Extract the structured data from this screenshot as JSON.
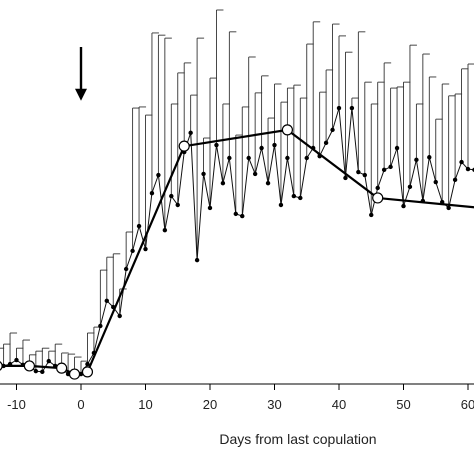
{
  "chart_data": {
    "type": "line",
    "xlabel": "Days from last copulation",
    "xlim": [
      -13,
      63
    ],
    "ylim": [
      0,
      100
    ],
    "x_ticks": [
      -10,
      0,
      10,
      20,
      30,
      40,
      50,
      60
    ],
    "x_tick_labels": [
      "-10",
      "0",
      "10",
      "20",
      "30",
      "40",
      "50",
      "60"
    ],
    "annotation": {
      "type": "arrow-down",
      "x": 0,
      "y_top": 90,
      "y_bottom": 76
    },
    "series": [
      {
        "style": "filled-dots-thin-line-with-error-bars",
        "x": [
          -13,
          -12,
          -11,
          -10,
          -9,
          -8,
          -7,
          -6,
          -5,
          -4,
          -3,
          -2,
          -1,
          0,
          1,
          2,
          3,
          4,
          5,
          6,
          7,
          8,
          9,
          10,
          11,
          12,
          13,
          14,
          15,
          16,
          17,
          18,
          19,
          20,
          21,
          22,
          23,
          24,
          25,
          26,
          27,
          28,
          29,
          30,
          31,
          32,
          33,
          34,
          35,
          36,
          37,
          38,
          39,
          40,
          41,
          42,
          43,
          44,
          45,
          46,
          47,
          48,
          49,
          50,
          51,
          52,
          53,
          54,
          55,
          56,
          57,
          58,
          59,
          60,
          61,
          62
        ],
        "y": [
          4.1,
          3.8,
          4.3,
          5.4,
          4.1,
          3.8,
          2.4,
          2.2,
          5.1,
          3.8,
          3.2,
          1.6,
          1.4,
          1.6,
          4.3,
          7.3,
          14.6,
          21.4,
          19.7,
          17.3,
          30.0,
          34.9,
          41.6,
          35.4,
          50.5,
          55.4,
          40.5,
          49.7,
          47.3,
          61.6,
          66.8,
          32.4,
          55.7,
          46.5,
          63.5,
          53.2,
          60.0,
          44.9,
          44.3,
          60.0,
          55.7,
          62.7,
          53.2,
          63.5,
          47.3,
          60.0,
          49.7,
          49.2,
          60.0,
          62.7,
          60.5,
          64.1,
          67.6,
          73.5,
          54.6,
          73.5,
          56.2,
          55.4,
          44.6,
          51.9,
          56.8,
          57.6,
          62.7,
          47.0,
          52.2,
          59.5,
          48.4,
          60.2,
          53.5,
          48.1,
          46.5,
          54.1,
          58.9,
          57.0,
          56.8,
          43.5
        ],
        "error_upper": [
          8.6,
          9.7,
          12.7,
          8.6,
          10.8,
          6.8,
          7.8,
          8.6,
          7.8,
          9.7,
          7.3,
          7.0,
          6.2,
          5.1,
          12.7,
          14.3,
          29.7,
          33.2,
          34.1,
          24.6,
          40.0,
          73.5,
          73.8,
          71.6,
          93.8,
          93.2,
          92.4,
          74.6,
          83.0,
          85.7,
          77.0,
          92.4,
          65.4,
          81.6,
          100.0,
          74.6,
          94.1,
          66.2,
          73.8,
          87.3,
          77.6,
          82.2,
          70.8,
          80.0,
          75.1,
          78.9,
          79.7,
          76.2,
          90.8,
          96.8,
          77.8,
          83.8,
          96.2,
          93.0,
          88.6,
          76.2,
          94.1,
          80.5,
          74.6,
          80.5,
          85.7,
          78.9,
          79.2,
          80.5,
          90.5,
          74.6,
          88.1,
          81.9,
          70.5,
          80.0,
          76.8,
          77.3,
          84.1,
          85.4,
          85.1,
          73.8
        ]
      },
      {
        "style": "open-circles-thick-line",
        "x": [
          -13,
          -8,
          -3,
          -1,
          1,
          16,
          32,
          46,
          62
        ],
        "y": [
          3.8,
          3.8,
          3.2,
          1.6,
          2.2,
          63.2,
          67.6,
          49.2,
          46.5
        ]
      }
    ]
  }
}
